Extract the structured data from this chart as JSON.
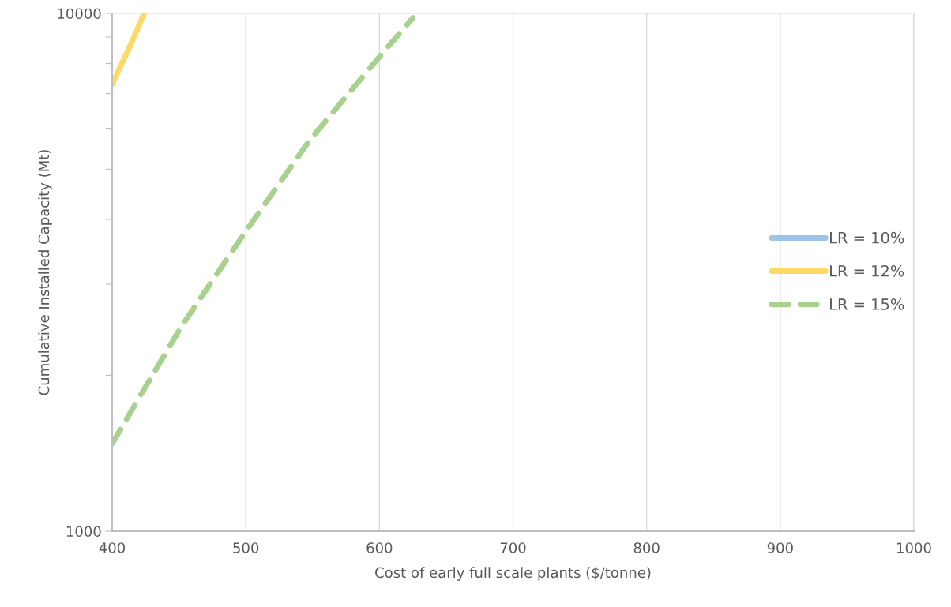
{
  "chart_data": {
    "type": "line",
    "xlabel": "Cost of early full scale plants ($/tonne)",
    "ylabel": "Cumulative Installed Capacity (Mt)",
    "xlim": [
      400,
      1000
    ],
    "xticks": [
      400,
      500,
      600,
      700,
      800,
      900,
      1000
    ],
    "ylim": [
      1000,
      10000
    ],
    "yticks": [
      1000,
      {
        "value": 2000,
        "label": null
      },
      {
        "value": 3000,
        "label": null
      },
      {
        "value": 4000,
        "label": null
      },
      {
        "value": 5000,
        "label": null
      },
      {
        "value": 6000,
        "label": null
      },
      {
        "value": 7000,
        "label": null
      },
      {
        "value": 8000,
        "label": null
      },
      {
        "value": 9000,
        "label": null
      },
      10000
    ],
    "log": "y",
    "grid": "x",
    "legend": "right",
    "marker": "none",
    "series": [
      {
        "name": "LR = 10%",
        "color": "#9dc3e6",
        "line_style": "solid"
      },
      {
        "name": "LR = 12%",
        "color": "#ffd966",
        "line_style": "solid",
        "x": [
          400,
          412,
          424
        ],
        "values": [
          7300,
          8500,
          10000
        ]
      },
      {
        "name": "LR = 15%",
        "color": "#a9d18e",
        "line_style": "dashed",
        "x": [
          400,
          417,
          452,
          500,
          548,
          600,
          625
        ],
        "values": [
          1476,
          1755,
          2490,
          3795,
          5700,
          8245,
          9800
        ]
      }
    ]
  }
}
